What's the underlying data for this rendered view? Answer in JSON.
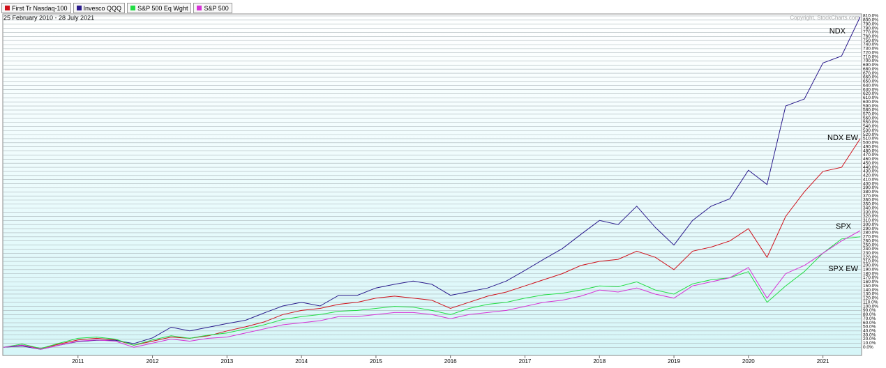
{
  "chart_data": {
    "type": "line",
    "title": "25 February 2010 - 28 July 2021",
    "annotations": [
      "Copyright, StockCharts.com",
      "NDX",
      "NDX EW",
      "SPX",
      "SPX EW"
    ],
    "categories": [
      null,
      null,
      null,
      null,
      "2011",
      null,
      null,
      null,
      "2012",
      null,
      null,
      null,
      "2013",
      null,
      null,
      null,
      "2014",
      null,
      null,
      null,
      "2015",
      null,
      null,
      null,
      "2016",
      null,
      null,
      null,
      "2017",
      null,
      null,
      null,
      "2018",
      null,
      null,
      null,
      "2019",
      null,
      null,
      null,
      "2020",
      null,
      null,
      null,
      "2021",
      null,
      null
    ],
    "series": [
      {
        "name": "First Tr Nasdaq-100",
        "color": "#d0101a",
        "values": [
          0,
          5,
          -3,
          8,
          18,
          22,
          18,
          5,
          15,
          25,
          22,
          28,
          40,
          50,
          62,
          80,
          90,
          95,
          105,
          110,
          120,
          125,
          120,
          115,
          95,
          110,
          125,
          135,
          150,
          165,
          180,
          200,
          210,
          215,
          235,
          220,
          190,
          235,
          245,
          260,
          290,
          220,
          320,
          380,
          430,
          440,
          510
        ]
      },
      {
        "name": "Invesco QQQ",
        "color": "#2a1a8c",
        "values": [
          0,
          3,
          -5,
          5,
          14,
          17,
          17,
          9,
          23,
          49,
          40,
          49,
          58,
          66,
          84,
          101,
          110,
          101,
          127,
          127,
          145,
          154,
          162,
          154,
          127,
          136,
          145,
          162,
          188,
          215,
          241,
          276,
          310,
          300,
          345,
          293,
          250,
          310,
          345,
          363,
          433,
          398,
          590,
          607,
          695,
          712,
          808
        ]
      },
      {
        "name": "S&P 500 Eq Wght",
        "color": "#22dd44",
        "values": [
          0,
          8,
          -3,
          10,
          22,
          25,
          20,
          5,
          18,
          28,
          22,
          30,
          35,
          45,
          55,
          68,
          75,
          80,
          88,
          90,
          95,
          100,
          98,
          90,
          80,
          95,
          105,
          110,
          120,
          128,
          132,
          140,
          150,
          148,
          160,
          140,
          130,
          155,
          165,
          170,
          185,
          110,
          150,
          185,
          230,
          265,
          270
        ]
      },
      {
        "name": "S&P 500",
        "color": "#d633d6",
        "values": [
          0,
          5,
          -5,
          5,
          15,
          18,
          15,
          0,
          10,
          20,
          15,
          22,
          25,
          35,
          45,
          55,
          60,
          65,
          75,
          75,
          80,
          85,
          85,
          80,
          70,
          80,
          85,
          90,
          100,
          110,
          115,
          125,
          140,
          135,
          145,
          130,
          120,
          150,
          160,
          170,
          195,
          120,
          180,
          200,
          230,
          260,
          285
        ]
      }
    ],
    "ylim": [
      -20,
      815
    ],
    "yticks": [
      {
        "value": 0,
        "label": "0.0%"
      },
      {
        "value": 10,
        "label": "10.0%"
      },
      {
        "value": 20,
        "label": "20.0%"
      },
      {
        "value": 30,
        "label": "30.0%"
      },
      {
        "value": 40,
        "label": "40.0%"
      },
      {
        "value": 50,
        "label": "50.0%"
      },
      {
        "value": 60,
        "label": "60.0%"
      },
      {
        "value": 70,
        "label": "70.0%"
      },
      {
        "value": 80,
        "label": "80.0%"
      },
      {
        "value": 90,
        "label": "90.0%"
      },
      {
        "value": 100,
        "label": "100.0%"
      },
      {
        "value": 110,
        "label": "110.0%"
      },
      {
        "value": 120,
        "label": "120.0%"
      },
      {
        "value": 130,
        "label": "130.0%"
      },
      {
        "value": 140,
        "label": "140.0%"
      },
      {
        "value": 150,
        "label": "150.0%"
      },
      {
        "value": 160,
        "label": "160.0%"
      },
      {
        "value": 170,
        "label": "170.0%"
      },
      {
        "value": 180,
        "label": "180.0%"
      },
      {
        "value": 190,
        "label": "190.0%"
      },
      {
        "value": 200,
        "label": "200.0%"
      },
      {
        "value": 210,
        "label": "210.0%"
      },
      {
        "value": 220,
        "label": "220.0%"
      },
      {
        "value": 230,
        "label": "230.0%"
      },
      {
        "value": 240,
        "label": "240.0%"
      },
      {
        "value": 250,
        "label": "250.0%"
      },
      {
        "value": 260,
        "label": "260.0%"
      },
      {
        "value": 270,
        "label": "270.0%"
      },
      {
        "value": 280,
        "label": "280.0%"
      },
      {
        "value": 290,
        "label": "290.0%"
      },
      {
        "value": 300,
        "label": "300.0%"
      },
      {
        "value": 310,
        "label": "310.0%"
      },
      {
        "value": 320,
        "label": "320.0%"
      },
      {
        "value": 330,
        "label": "330.0%"
      },
      {
        "value": 340,
        "label": "340.0%"
      },
      {
        "value": 350,
        "label": "350.0%"
      },
      {
        "value": 360,
        "label": "360.0%"
      },
      {
        "value": 370,
        "label": "370.0%"
      },
      {
        "value": 380,
        "label": "380.0%"
      },
      {
        "value": 390,
        "label": "390.0%"
      },
      {
        "value": 400,
        "label": "400.0%"
      },
      {
        "value": 410,
        "label": "410.0%"
      },
      {
        "value": 420,
        "label": "420.0%"
      },
      {
        "value": 430,
        "label": "430.0%"
      },
      {
        "value": 440,
        "label": "440.0%"
      },
      {
        "value": 450,
        "label": "450.0%"
      },
      {
        "value": 460,
        "label": "460.0%"
      },
      {
        "value": 470,
        "label": "470.0%"
      },
      {
        "value": 480,
        "label": "480.0%"
      },
      {
        "value": 490,
        "label": "490.0%"
      },
      {
        "value": 500,
        "label": "500.0%"
      },
      {
        "value": 510,
        "label": "510.0%"
      },
      {
        "value": 520,
        "label": "520.0%"
      },
      {
        "value": 530,
        "label": "530.0%"
      },
      {
        "value": 540,
        "label": "540.0%"
      },
      {
        "value": 550,
        "label": "550.0%"
      },
      {
        "value": 560,
        "label": "560.0%"
      },
      {
        "value": 570,
        "label": "570.0%"
      },
      {
        "value": 580,
        "label": "580.0%"
      },
      {
        "value": 590,
        "label": "590.0%"
      },
      {
        "value": 600,
        "label": "600.0%"
      },
      {
        "value": 610,
        "label": "610.0%"
      },
      {
        "value": 620,
        "label": "620.0%"
      },
      {
        "value": 630,
        "label": "630.0%"
      },
      {
        "value": 640,
        "label": "640.0%"
      },
      {
        "value": 650,
        "label": "650.0%"
      },
      {
        "value": 660,
        "label": "660.0%"
      },
      {
        "value": 670,
        "label": "670.0%"
      },
      {
        "value": 680,
        "label": "680.0%"
      },
      {
        "value": 690,
        "label": "690.0%"
      },
      {
        "value": 700,
        "label": "700.0%"
      },
      {
        "value": 710,
        "label": "710.0%"
      },
      {
        "value": 720,
        "label": "720.0%"
      },
      {
        "value": 730,
        "label": "730.0%"
      },
      {
        "value": 740,
        "label": "740.0%"
      },
      {
        "value": 750,
        "label": "750.0%"
      },
      {
        "value": 760,
        "label": "760.0%"
      },
      {
        "value": 770,
        "label": "770.0%"
      },
      {
        "value": 780,
        "label": "780.0%"
      },
      {
        "value": 790,
        "label": "790.0%"
      },
      {
        "value": 800,
        "label": "800.0%"
      },
      {
        "value": 810,
        "label": "810.0%"
      }
    ],
    "grid": true
  }
}
